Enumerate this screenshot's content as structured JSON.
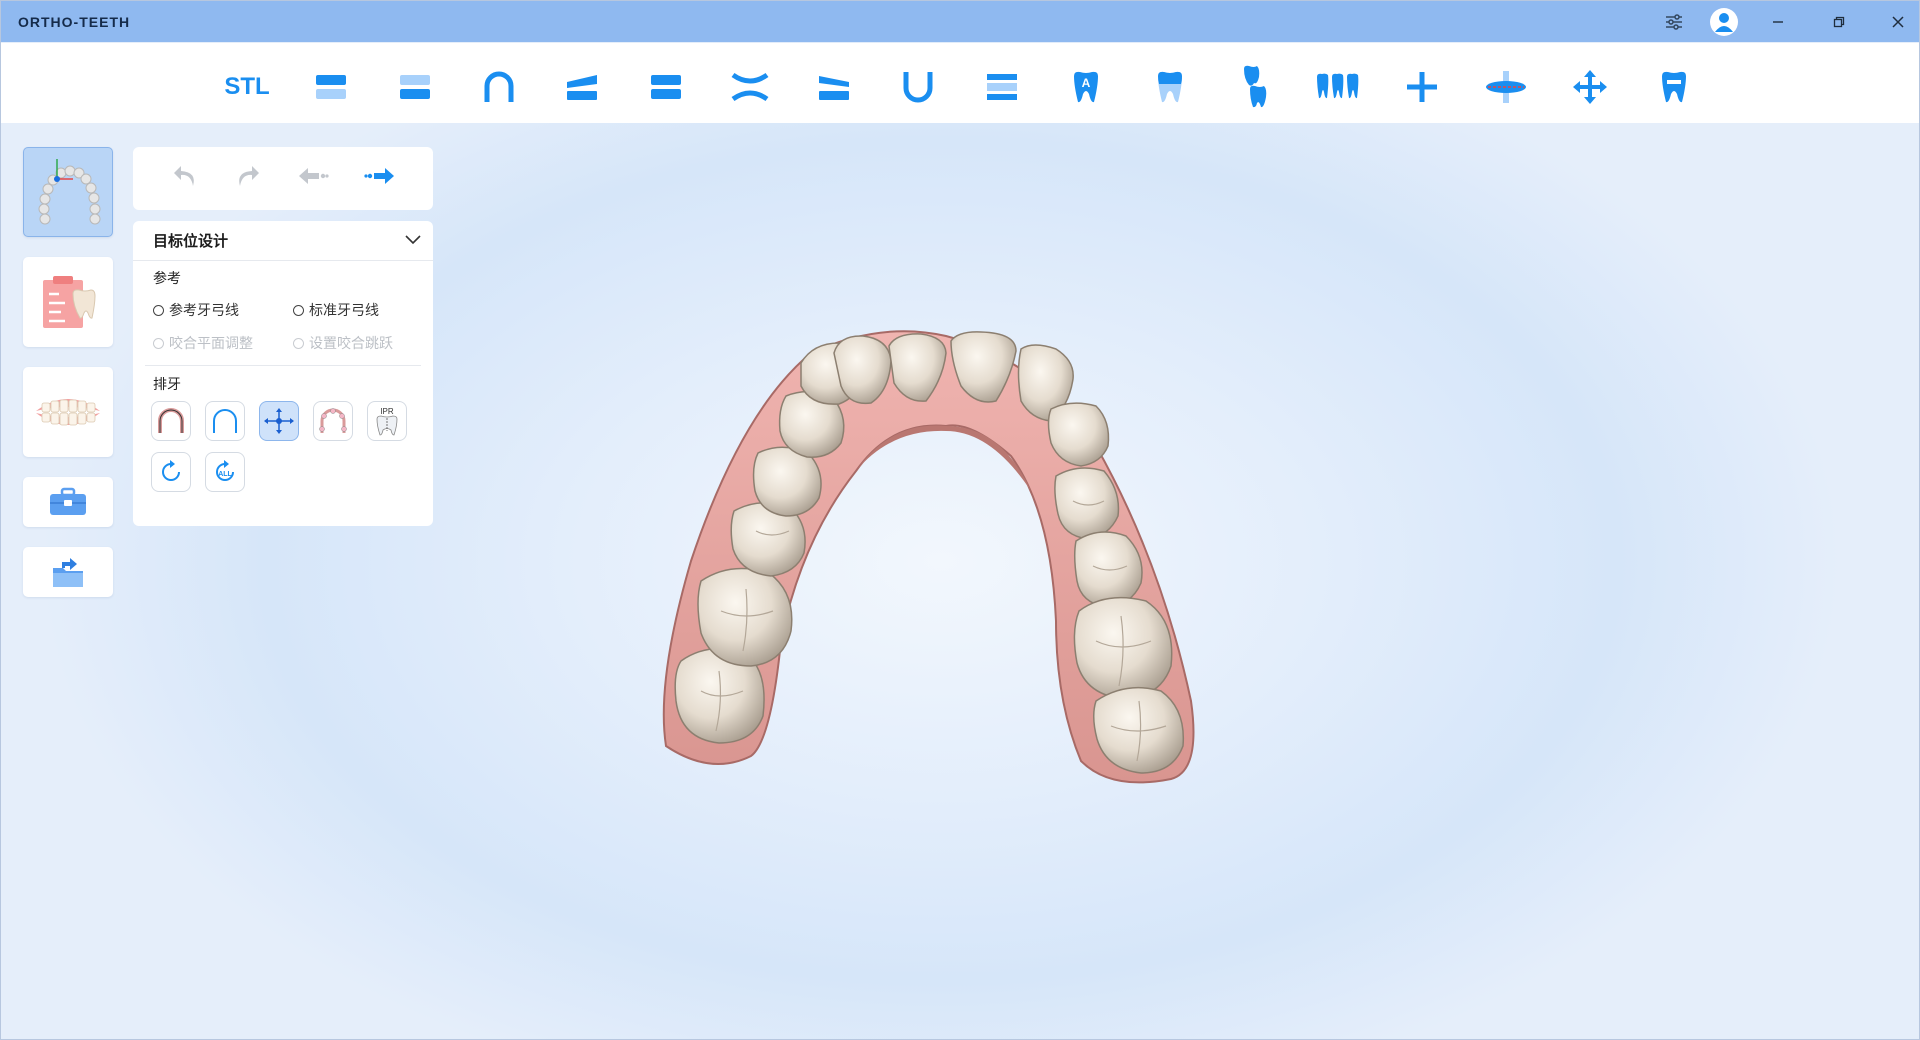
{
  "app": {
    "title": "ORTHO-TEETH"
  },
  "titlebar_controls": [
    "settings-icon",
    "user-avatar",
    "minimize-icon",
    "restore-icon",
    "close-icon"
  ],
  "toolbar": {
    "stl_label": "STL",
    "tools": [
      "stl",
      "upper-jaw",
      "lower-jaw",
      "arch",
      "occlusal-plane",
      "both-jaws",
      "bite-open",
      "bite-slope",
      "lower-arch",
      "layers",
      "tooth-label-a",
      "tooth-crown",
      "tooth-roots",
      "teeth-group",
      "add",
      "cut-plane",
      "move",
      "tooth-single"
    ]
  },
  "sidebar": {
    "items": [
      "arch-design",
      "treatment-plan",
      "dentition-view",
      "toolbox",
      "export"
    ]
  },
  "history": {
    "buttons": [
      "undo",
      "redo",
      "step-back",
      "step-forward"
    ]
  },
  "panel": {
    "title": "目标位设计",
    "reference": {
      "label": "参考",
      "options": [
        {
          "label": "参考牙弓线",
          "enabled": true
        },
        {
          "label": "标准牙弓线",
          "enabled": true
        },
        {
          "label": "咬合平面调整",
          "enabled": false
        },
        {
          "label": "设置咬合跳跃",
          "enabled": false
        }
      ]
    },
    "arrange": {
      "label": "排牙",
      "ipr_label": "IPR",
      "all_label": "ALL"
    }
  },
  "colors": {
    "accent": "#1a8ef0",
    "titlebar": "#8fb9f0",
    "gum": "#e8a4a4",
    "tooth": "#e9e2d8"
  }
}
